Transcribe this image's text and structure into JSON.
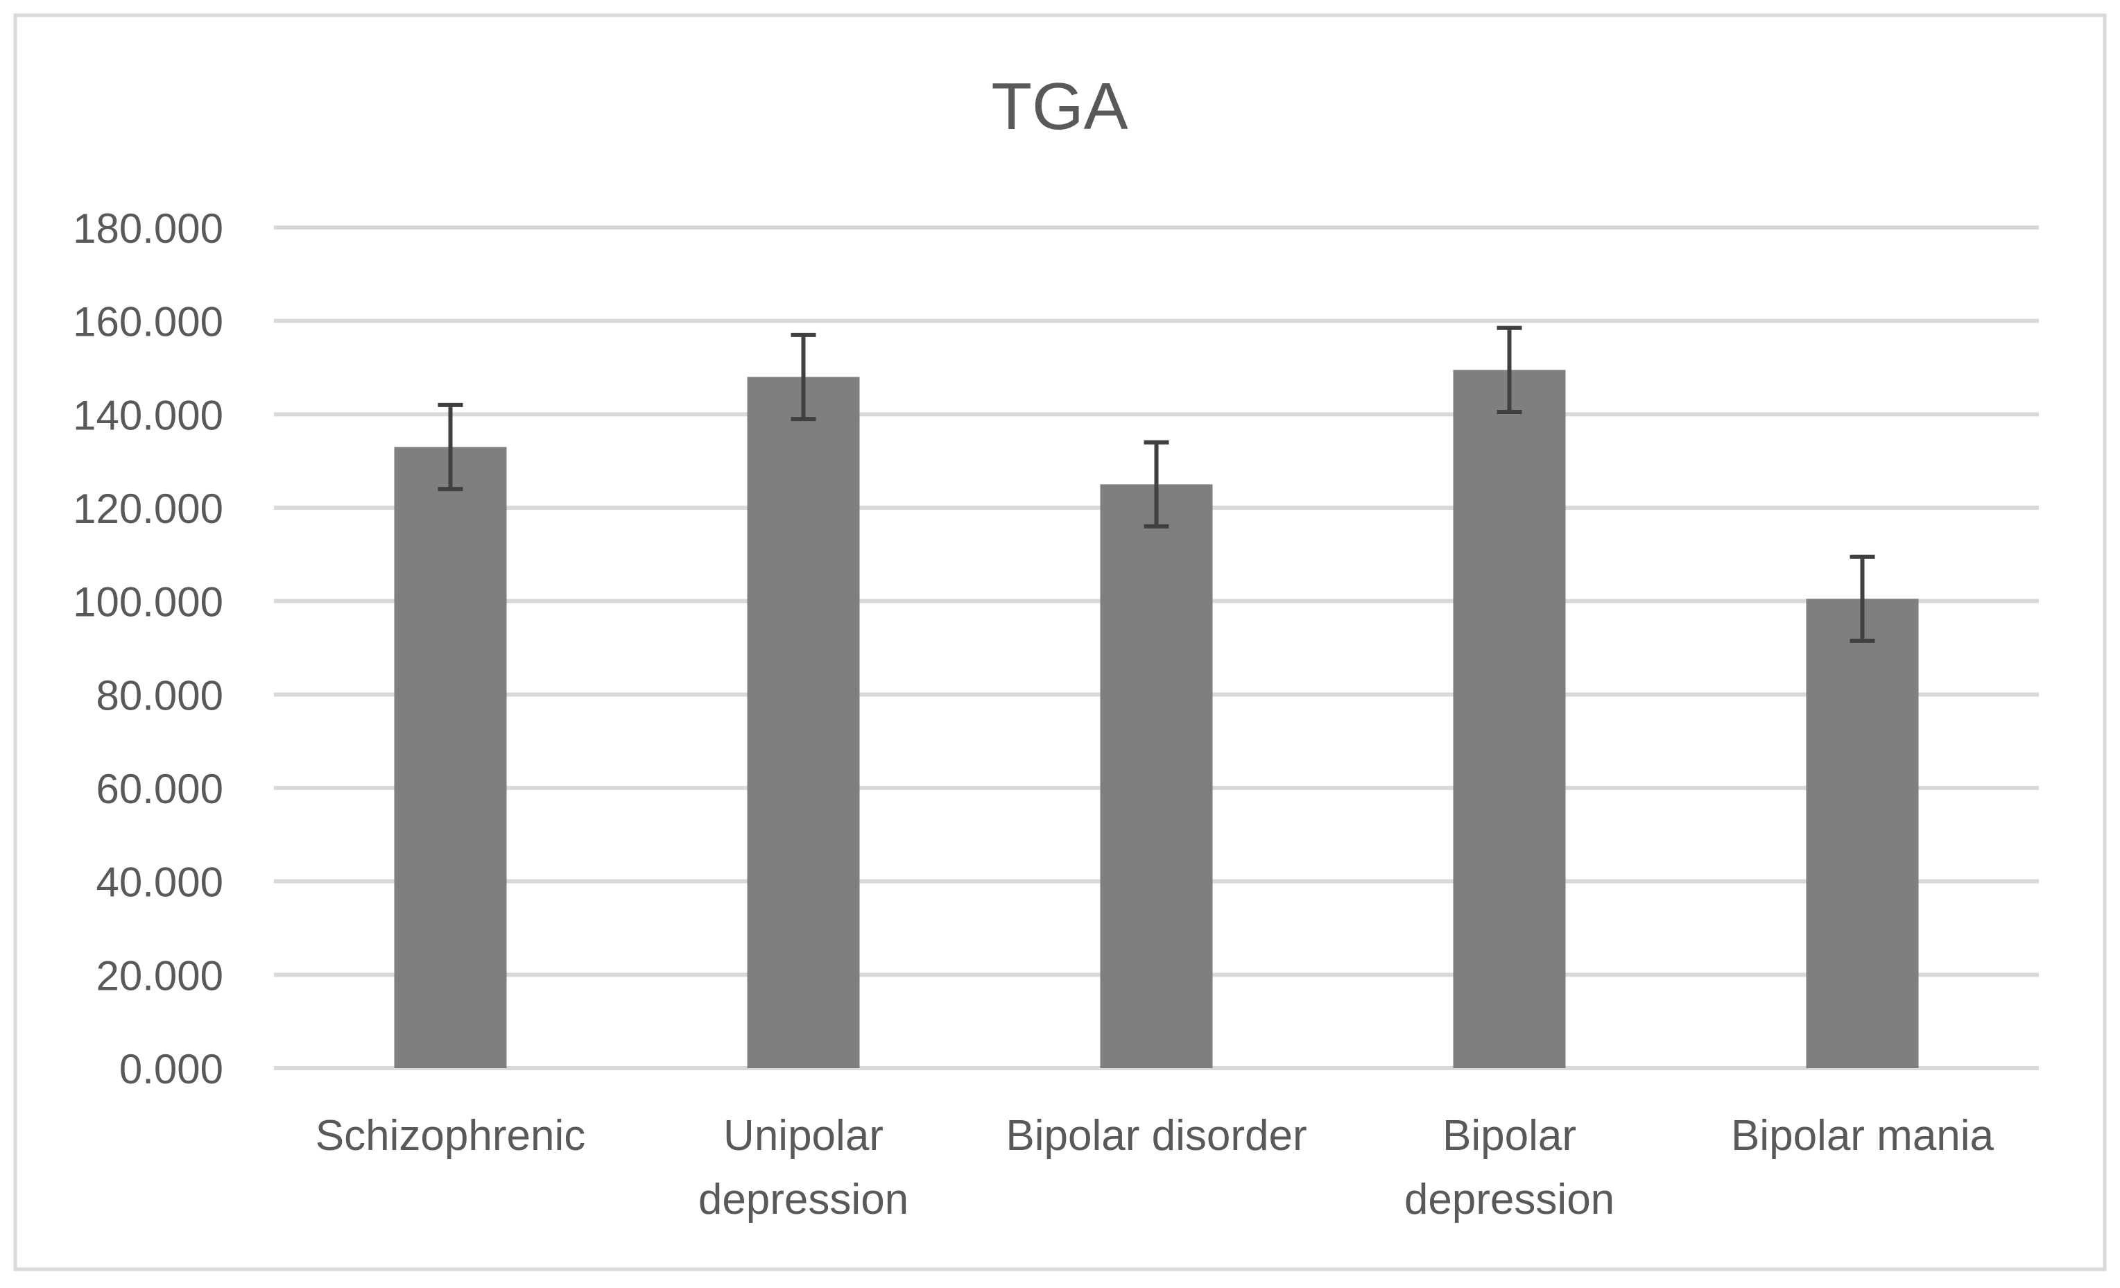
{
  "chart_data": {
    "type": "bar",
    "title": "TGA",
    "xlabel": "",
    "ylabel": "",
    "categories": [
      [
        "Schizophrenic"
      ],
      [
        "Unipolar",
        "depression"
      ],
      [
        "Bipolar disorder"
      ],
      [
        "Bipolar",
        "depression"
      ],
      [
        "Bipolar mania"
      ]
    ],
    "values": [
      133,
      148,
      125,
      149.5,
      100.5
    ],
    "error_plus": [
      9,
      9,
      9,
      9,
      9
    ],
    "error_minus": [
      9,
      9,
      9,
      9,
      9
    ],
    "ylim": [
      0,
      180
    ],
    "yticks": [
      0,
      20,
      40,
      60,
      80,
      100,
      120,
      140,
      160,
      180
    ],
    "ytick_labels": [
      "0.000",
      "20.000",
      "40.000",
      "60.000",
      "80.000",
      "100.000",
      "120.000",
      "140.000",
      "160.000",
      "180.000"
    ],
    "grid": true,
    "legend": "none",
    "colors": {
      "bar": "#7f7f7f",
      "error_bar": "#404040",
      "grid": "#d9d9d9",
      "text": "#595959",
      "frame": "#d9d9d9"
    }
  }
}
